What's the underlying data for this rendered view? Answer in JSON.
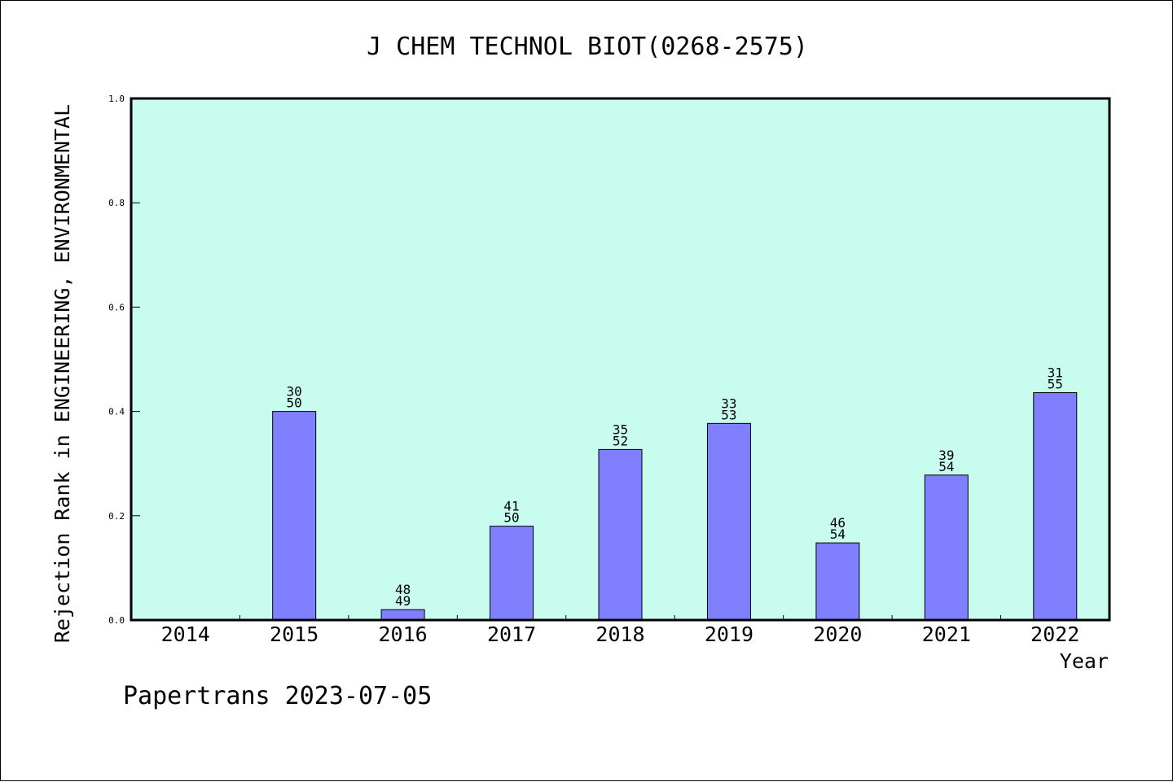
{
  "chart_data": {
    "type": "bar",
    "title": "J CHEM TECHNOL BIOT(0268-2575)",
    "xlabel": "Year",
    "ylabel": "Rejection Rank in ENGINEERING, ENVIRONMENTAL",
    "ylim": [
      0,
      1.0
    ],
    "yticks": [
      "0.0",
      "0.2",
      "0.4",
      "0.6",
      "0.8",
      "1.0"
    ],
    "grid": false,
    "categories": [
      "2014",
      "2015",
      "2016",
      "2017",
      "2018",
      "2019",
      "2020",
      "2021",
      "2022"
    ],
    "values": [
      0,
      0.4,
      0.02,
      0.18,
      0.327,
      0.377,
      0.148,
      0.278,
      0.436
    ],
    "labels": [
      [
        "",
        ""
      ],
      [
        "30",
        "50"
      ],
      [
        "48",
        "49"
      ],
      [
        "41",
        "50"
      ],
      [
        "35",
        "52"
      ],
      [
        "33",
        "53"
      ],
      [
        "46",
        "54"
      ],
      [
        "39",
        "54"
      ],
      [
        "31",
        "55"
      ]
    ]
  },
  "footer": "Papertrans 2023-07-05",
  "colors": {
    "plot_background": "#c8fcee",
    "bar": "#8080ff",
    "axis": "#000000"
  }
}
